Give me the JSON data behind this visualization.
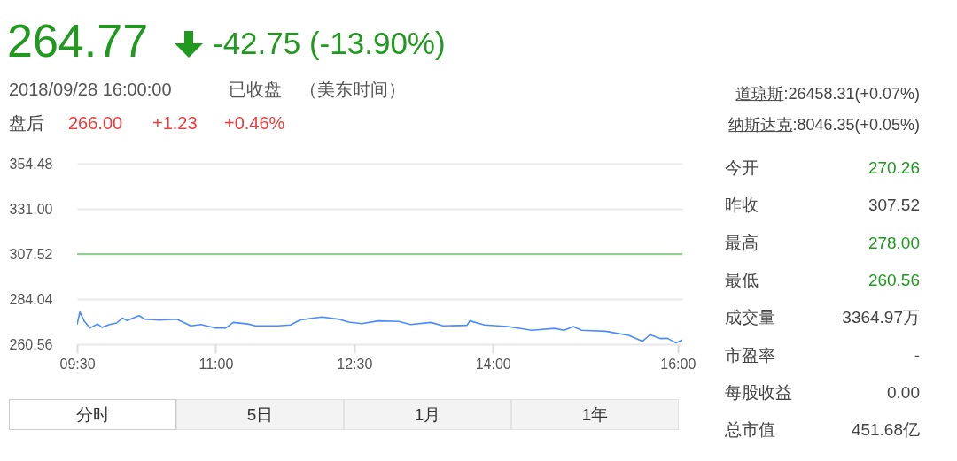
{
  "chart_data": {
    "type": "line",
    "annotations": [
      "264.77",
      "-42.75 (-13.90%)",
      "2018/09/28 16:00:00",
      "已收盘",
      "（美东时间）",
      "盘后",
      "266.00",
      "+1.23",
      "+0.46%",
      "道琼斯",
      ":26458.31(+0.07%)",
      "纳斯达克",
      ":8046.35(+0.05%)",
      "今开",
      "270.26",
      "昨收",
      "307.52",
      "最高",
      "278.00",
      "最低",
      "260.56",
      "成交量",
      "3364.97万",
      "市盈率",
      "-",
      "每股收益",
      "0.00",
      "总市值",
      "451.68亿",
      "分时",
      "5日",
      "1月",
      "1年"
    ],
    "x": [
      9.5,
      9.53,
      9.58,
      9.64,
      9.72,
      9.77,
      9.85,
      9.93,
      9.99,
      10.04,
      10.17,
      10.23,
      10.39,
      10.58,
      10.73,
      10.84,
      11.0,
      11.11,
      11.19,
      11.35,
      11.43,
      11.67,
      11.81,
      11.91,
      12.02,
      12.15,
      12.34,
      12.44,
      12.58,
      12.76,
      12.98,
      13.11,
      13.33,
      13.46,
      13.72,
      13.75,
      13.91,
      14.16,
      14.42,
      14.67,
      14.77,
      14.87,
      14.96,
      15.22,
      15.47,
      15.62,
      15.7,
      15.81,
      15.89,
      15.98,
      16.05
    ],
    "series": [
      {
        "color": "#4a8cff",
        "values": [
          270.8,
          277.3,
          272.4,
          269.0,
          271.1,
          269.3,
          270.8,
          271.6,
          274.2,
          272.9,
          275.4,
          273.6,
          273.1,
          273.6,
          270.1,
          270.8,
          269.0,
          269.0,
          271.9,
          271.1,
          270.1,
          270.1,
          270.6,
          273.1,
          273.9,
          274.7,
          273.5,
          272.1,
          271.3,
          272.7,
          272.4,
          270.8,
          271.9,
          270.1,
          270.4,
          272.7,
          270.6,
          269.8,
          267.8,
          268.8,
          267.8,
          269.8,
          267.8,
          267.3,
          265.2,
          262.1,
          265.5,
          263.5,
          263.6,
          261.3,
          262.7
        ]
      }
    ],
    "xlim": [
      9.5,
      16.05
    ],
    "xticks": [
      {
        "value": 9.5,
        "label": "09:30"
      },
      {
        "value": 11,
        "label": "11:00"
      },
      {
        "value": 12.5,
        "label": "12:30"
      },
      {
        "value": 14,
        "label": "14:00"
      },
      {
        "value": 16,
        "label": "16:00"
      }
    ],
    "ylim": [
      260.56,
      354.48
    ],
    "yticks": [
      260.56,
      284.04,
      307.52,
      {
        "value": 331,
        "label": "331.00"
      },
      354.48
    ],
    "ref_lines": [
      {
        "axis": "y",
        "value": 307.52,
        "color": "#8fd18f"
      }
    ],
    "grid": "y",
    "marker": "none",
    "line_style": "solid"
  }
}
